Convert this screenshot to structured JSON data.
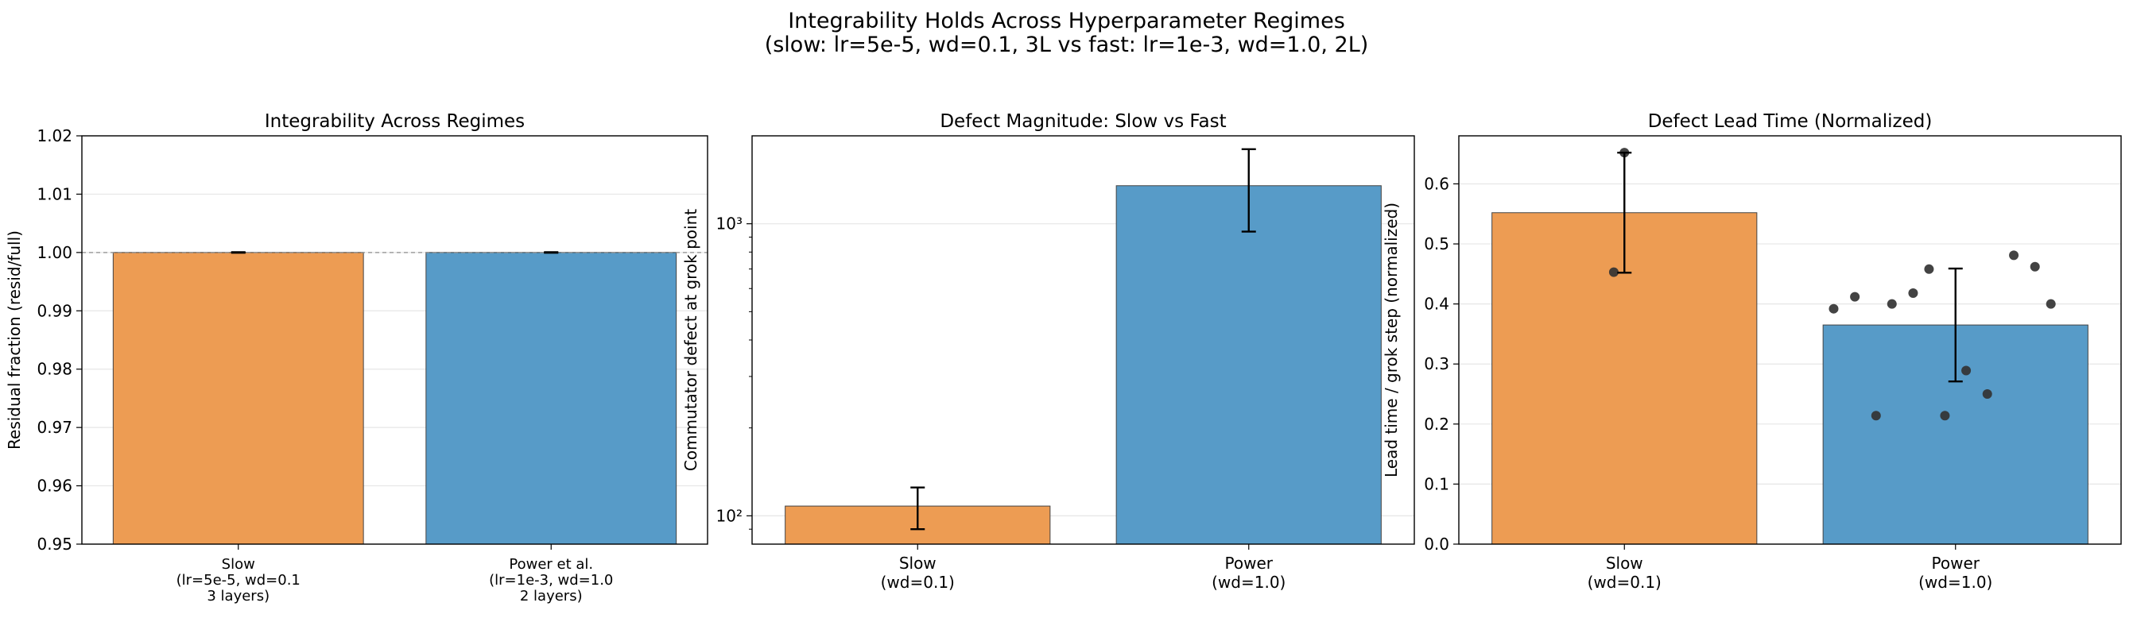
{
  "suptitle": {
    "line1": "Integrability Holds Across Hyperparameter Regimes",
    "line2": "(slow: lr=5e-5, wd=0.1, 3L  vs  fast: lr=1e-3, wd=1.0, 2L)"
  },
  "colors": {
    "slow": "#ED9A50",
    "power": "#5499C7",
    "points": "#333333"
  },
  "chart_data": [
    {
      "type": "bar",
      "title": "Integrability Across Regimes",
      "ylabel": "Residual fraction (resid/full)",
      "xlabel": "",
      "yscale": "linear",
      "ylim": [
        0.95,
        1.02
      ],
      "yticks": [
        0.95,
        0.96,
        0.97,
        0.98,
        0.99,
        1.0,
        1.01,
        1.02
      ],
      "ytick_labels": [
        "0.95",
        "0.96",
        "0.97",
        "0.98",
        "0.99",
        "1.00",
        "1.01",
        "1.02"
      ],
      "grid": "y",
      "reference_line": 1.0,
      "categories": [
        [
          "Slow",
          "(lr=5e-5, wd=0.1",
          "3 layers)"
        ],
        [
          "Power et al.",
          "(lr=1e-3, wd=1.0",
          "2 layers)"
        ]
      ],
      "values": [
        1.0,
        1.0
      ],
      "errors": [
        5e-05,
        5e-05
      ],
      "points": [
        [],
        []
      ]
    },
    {
      "type": "bar",
      "title": "Defect Magnitude: Slow vs Fast",
      "ylabel": "Commutator defect at grok point",
      "xlabel": "",
      "yscale": "log",
      "ylim": [
        80,
        2000
      ],
      "yticks": [
        100,
        1000
      ],
      "ytick_labels": [
        "10²",
        "10³"
      ],
      "grid": "y",
      "categories": [
        [
          "Slow",
          "(wd=0.1)"
        ],
        [
          "Power",
          "(wd=1.0)"
        ]
      ],
      "values": [
        108,
        1350
      ],
      "errors": [
        [
          18,
          17
        ],
        [
          410,
          450
        ]
      ],
      "points": [
        [],
        []
      ]
    },
    {
      "type": "bar",
      "title": "Defect Lead Time (Normalized)",
      "ylabel": "Lead time / grok step (normalized)",
      "xlabel": "",
      "yscale": "linear",
      "ylim": [
        0,
        0.68
      ],
      "yticks": [
        0,
        0.1,
        0.2,
        0.3,
        0.4,
        0.5,
        0.6
      ],
      "ytick_labels": [
        "0.0",
        "0.1",
        "0.2",
        "0.3",
        "0.4",
        "0.5",
        "0.6"
      ],
      "grid": "y",
      "categories": [
        [
          "Slow",
          "(wd=0.1)"
        ],
        [
          "Power",
          "(wd=1.0)"
        ]
      ],
      "values": [
        0.552,
        0.365
      ],
      "errors": [
        0.1,
        0.094
      ],
      "points": [
        [
          0.652,
          0.453
        ],
        [
          0.392,
          0.412,
          0.214,
          0.4,
          0.418,
          0.458,
          0.214,
          0.289,
          0.25,
          0.481,
          0.462,
          0.4
        ]
      ]
    }
  ]
}
